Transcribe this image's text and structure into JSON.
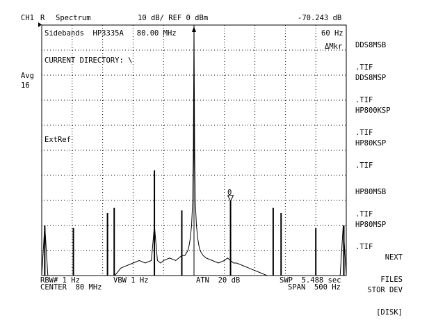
{
  "header": {
    "channel": "CH1",
    "trace": "R",
    "mode": "Spectrum",
    "scale": "10 dB/ REF 0 dBm",
    "marker_readout": "-70.243 dB"
  },
  "left_panel": {
    "avg_label": "Avg",
    "avg_count": "16"
  },
  "screen": {
    "title": "Sidebands  HP3335A   80.00 MHz",
    "marker_freq": "60 Hz",
    "delta_marker": "ΔMkr",
    "directory": "CURRENT DIRECTORY: \\",
    "extref": "ExtRef",
    "marker_id": "0"
  },
  "softkeys": [
    {
      "line1": "DDS8MSB",
      "line2": ".TIF"
    },
    {
      "line1": "DDS8MSP",
      "line2": ".TIF"
    },
    {
      "line1": "HP800KSP",
      "line2": ".TIF"
    },
    {
      "line1": "HP80KSP",
      "line2": ".TIF"
    },
    {
      "line1": "HP80MSB",
      "line2": ".TIF"
    },
    {
      "line1": "HP80MSP",
      "line2": ".TIF"
    },
    {
      "line1": "NEXT",
      "line2": "FILES"
    },
    {
      "line1": "STOR DEV",
      "line2": "[DISK]"
    }
  ],
  "footer": {
    "rbw": "RBW# 1 Hz",
    "center": "CENTER  80 MHz",
    "vbw": "VBW 1 Hz",
    "atn": "ATN  20 dB",
    "swp": "SWP  5.488 sec",
    "span": "SPAN  500 Hz"
  },
  "chart_data": {
    "type": "line",
    "x": [
      -250,
      -245,
      -240,
      -230,
      -220,
      -210,
      -200,
      -190,
      -180,
      -170,
      -160,
      -150,
      -140,
      -130,
      -120,
      -110,
      -100,
      -90,
      -80,
      -70,
      -65,
      -60,
      -55,
      -50,
      -40,
      -30,
      -20,
      -15,
      -10,
      -8,
      -6,
      -4,
      -2,
      -1,
      0,
      1,
      2,
      4,
      6,
      8,
      10,
      15,
      20,
      30,
      40,
      50,
      55,
      60,
      65,
      70,
      80,
      90,
      100,
      110,
      120,
      130,
      140,
      150,
      160,
      170,
      180,
      190,
      200,
      210,
      220,
      230,
      240,
      245,
      250
    ],
    "y": [
      -100,
      -80,
      -100,
      -100,
      -100,
      -100,
      -100,
      -100,
      -100,
      -100,
      -100,
      -100,
      -100,
      -100,
      -97,
      -96,
      -95,
      -94,
      -95,
      -94,
      -80,
      -94,
      -95,
      -94,
      -93,
      -94,
      -92,
      -92,
      -90,
      -88,
      -85,
      -80,
      -70,
      -50,
      0,
      -50,
      -70,
      -80,
      -85,
      -88,
      -90,
      -92,
      -93,
      -94,
      -95,
      -94,
      -93,
      -94,
      -95,
      -95,
      -96,
      -97,
      -98,
      -99,
      -100,
      -100,
      -100,
      -100,
      -100,
      -100,
      -100,
      -100,
      -100,
      -100,
      -100,
      -100,
      -100,
      -80,
      -100
    ],
    "spurs": [
      {
        "x": -245,
        "y": -80
      },
      {
        "x": -198,
        "y": -81
      },
      {
        "x": -142,
        "y": -75
      },
      {
        "x": -131,
        "y": -73
      },
      {
        "x": -65,
        "y": -58
      },
      {
        "x": -20,
        "y": -74
      },
      {
        "x": 60,
        "y": -70.243
      },
      {
        "x": 130,
        "y": -73
      },
      {
        "x": 143,
        "y": -75
      },
      {
        "x": 200,
        "y": -81
      },
      {
        "x": 246,
        "y": -80
      }
    ],
    "xlim": [
      -250,
      250
    ],
    "ylim": [
      -100,
      0
    ],
    "grid": true
  }
}
